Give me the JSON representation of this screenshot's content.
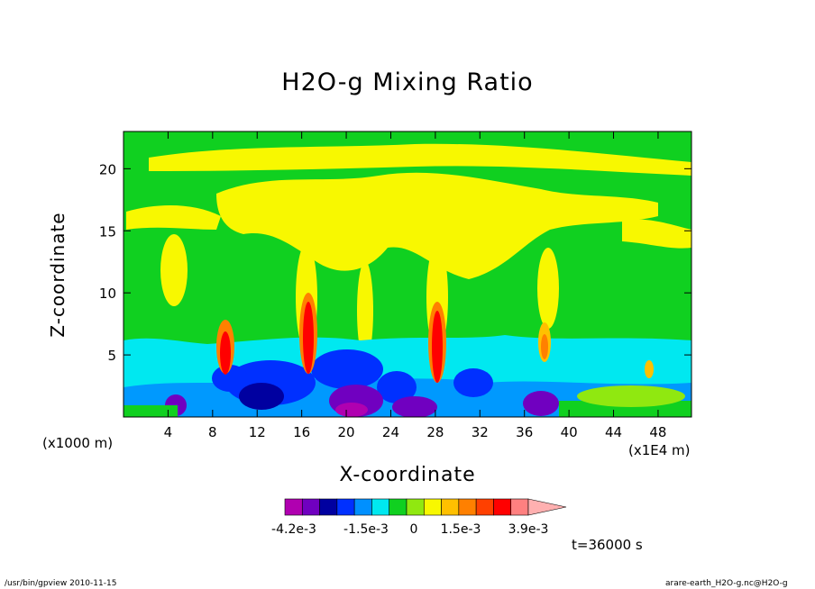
{
  "chart_data": {
    "type": "heatmap",
    "title": "H2O-g Mixing Ratio",
    "xlabel": "X-coordinate",
    "ylabel": "Z-coordinate",
    "x_unit_label": "(x1000 m)",
    "x_scale_label": "(x1E4 m)",
    "xlim": [
      0,
      51
    ],
    "ylim": [
      0,
      23
    ],
    "x_ticks": [
      4,
      8,
      12,
      16,
      20,
      24,
      28,
      32,
      36,
      40,
      44,
      48
    ],
    "y_ticks": [
      5,
      10,
      15,
      20
    ],
    "colorbar": {
      "colors": [
        "#b000b0",
        "#7000c0",
        "#0000a0",
        "#0030ff",
        "#0090ff",
        "#00e8f0",
        "#10d020",
        "#90e810",
        "#f8f800",
        "#ffc000",
        "#ff8000",
        "#ff4000",
        "#ff0000",
        "#ff8080"
      ],
      "overflow_color": "#ffb0b0",
      "labels": [
        "-4.2e-3",
        "-1.5e-3",
        "0",
        "1.5e-3",
        "3.9e-3"
      ]
    },
    "plumes_x": [
      9,
      17,
      28,
      38
    ],
    "time_label": "t=36000 s"
  },
  "footer": {
    "left": "/usr/bin/gpview   2010-11-15",
    "right": "arare-earth_H2O-g.nc@H2O-g"
  }
}
